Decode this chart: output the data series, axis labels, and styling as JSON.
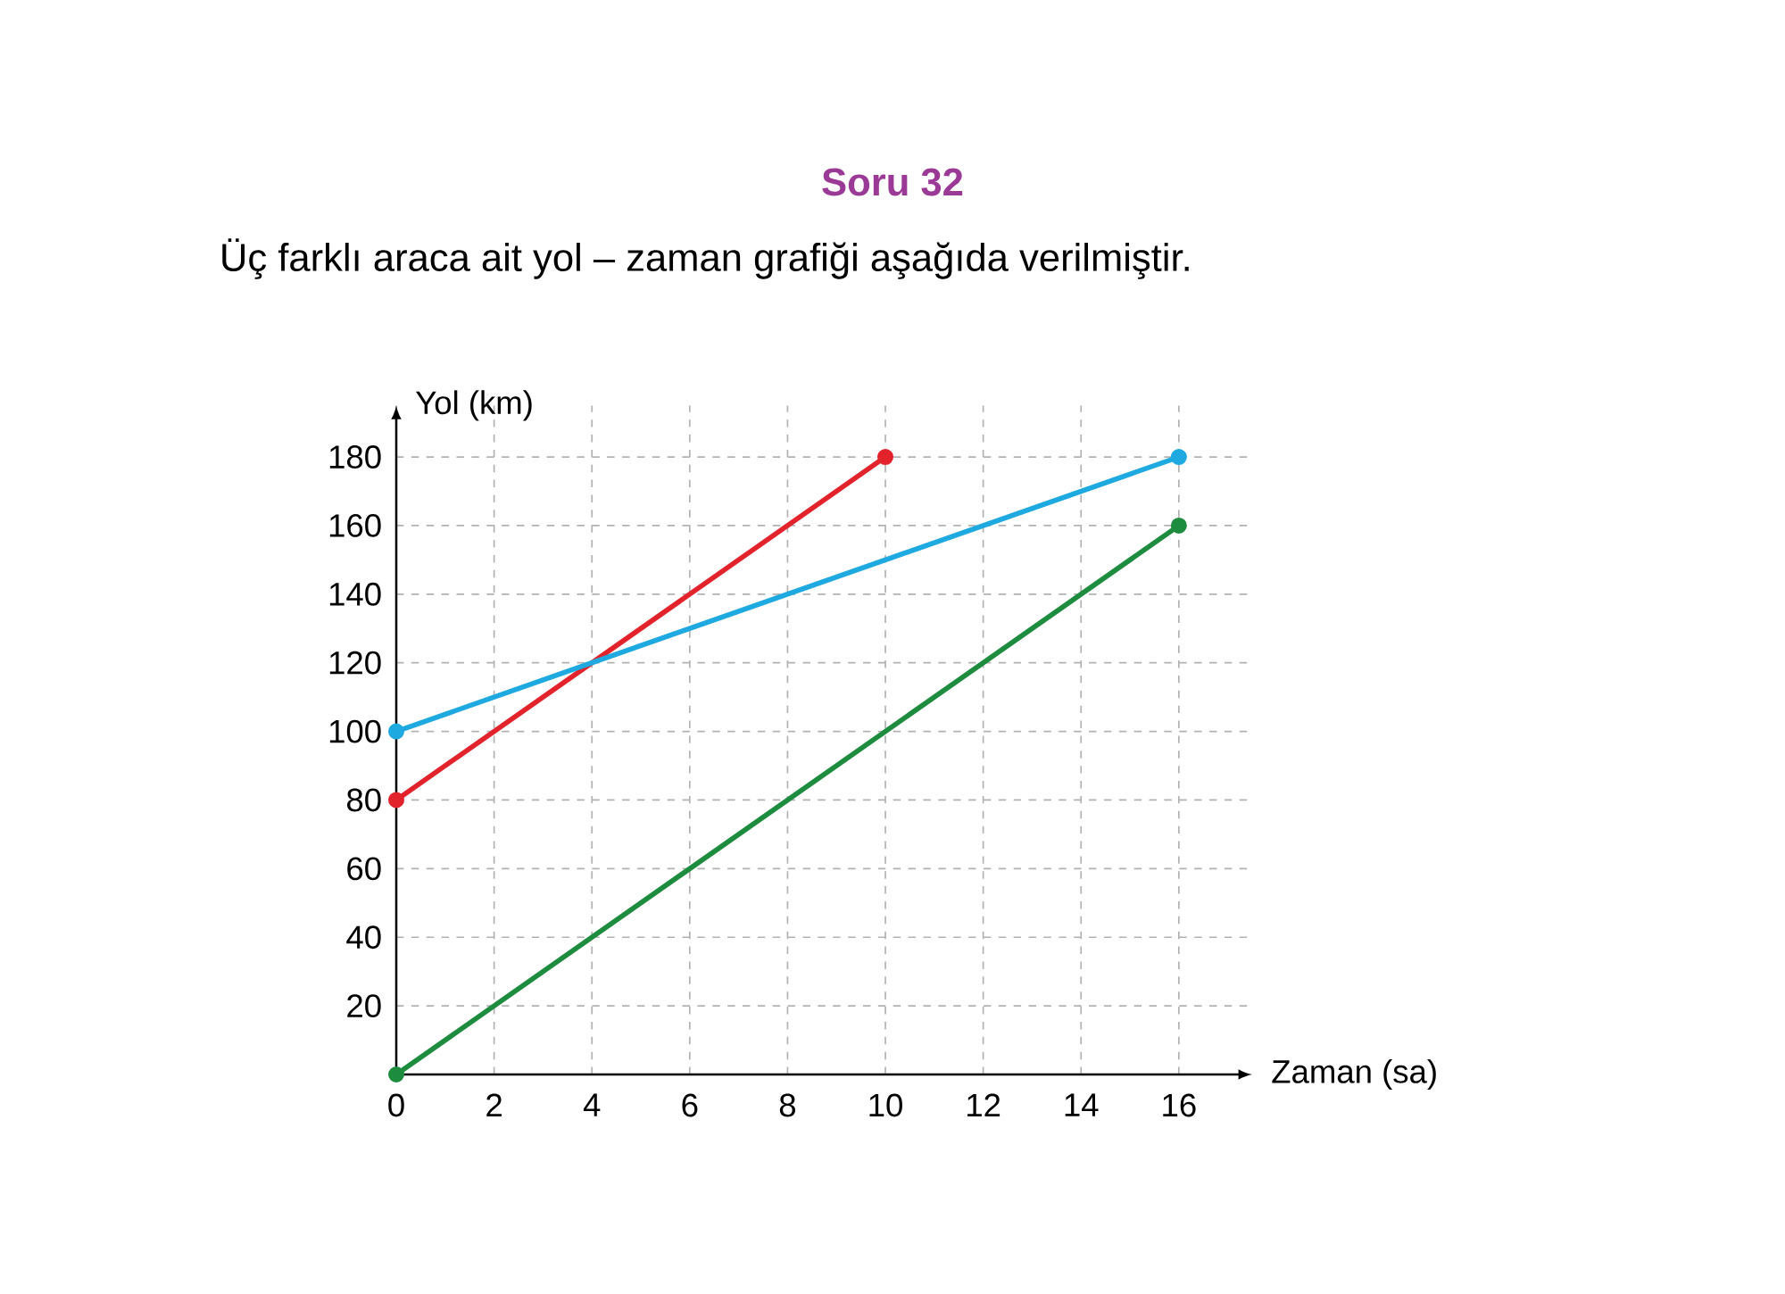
{
  "chart_data": {
    "type": "line",
    "title": "Soru 32",
    "subtitle": "Üç farklı araca ait yol – zaman grafiği aşağıda verilmiştir.",
    "xlabel": "Zaman (sa)",
    "ylabel": "Yol (km)",
    "series": [
      {
        "color": "#e3232c",
        "x": [
          0,
          10
        ],
        "values": [
          80,
          180
        ]
      },
      {
        "color": "#1fa9e1",
        "x": [
          0,
          16
        ],
        "values": [
          100,
          180
        ]
      },
      {
        "color": "#1e8c3e",
        "x": [
          0,
          16
        ],
        "values": [
          0,
          160
        ]
      }
    ],
    "xlim": [
      0,
      17.5
    ],
    "ylim": [
      0,
      195
    ],
    "xticks": [
      0,
      2,
      4,
      6,
      8,
      10,
      12,
      14,
      16
    ],
    "yticks": [
      20,
      40,
      60,
      80,
      100,
      120,
      140,
      160,
      180
    ],
    "grid": true,
    "marker": "circle",
    "line_style": "solid"
  }
}
